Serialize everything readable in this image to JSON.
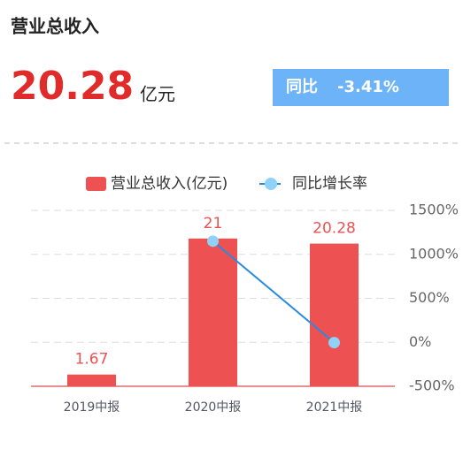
{
  "header": {
    "title": "营业总收入",
    "value": "20.28",
    "unit": "亿元",
    "yoy_label": "同比",
    "yoy_value": "-3.41%"
  },
  "chart_data": {
    "type": "bar",
    "categories": [
      "2019中报",
      "2020中报",
      "2021中报"
    ],
    "series": [
      {
        "name": "营业总收入(亿元)",
        "type": "bar",
        "color": "#ee5152",
        "values": [
          1.67,
          21,
          20.28
        ],
        "value_labels": [
          "1.67",
          "21",
          "20.28"
        ]
      },
      {
        "name": "同比增长率",
        "type": "line",
        "axis": "y2",
        "color": "#2a8ae0",
        "marker_color": "#8fd1f7",
        "values": [
          null,
          1150,
          -3.41
        ]
      }
    ],
    "ylim": [
      0,
      25
    ],
    "y2lim": [
      -500,
      1500
    ],
    "y2ticks": [
      {
        "value": 1500,
        "label": "1500%"
      },
      {
        "value": 1000,
        "label": "1000%"
      },
      {
        "value": 500,
        "label": "500%"
      },
      {
        "value": 0,
        "label": "0%"
      },
      {
        "value": -500,
        "label": "-500%"
      }
    ],
    "grid": true
  }
}
